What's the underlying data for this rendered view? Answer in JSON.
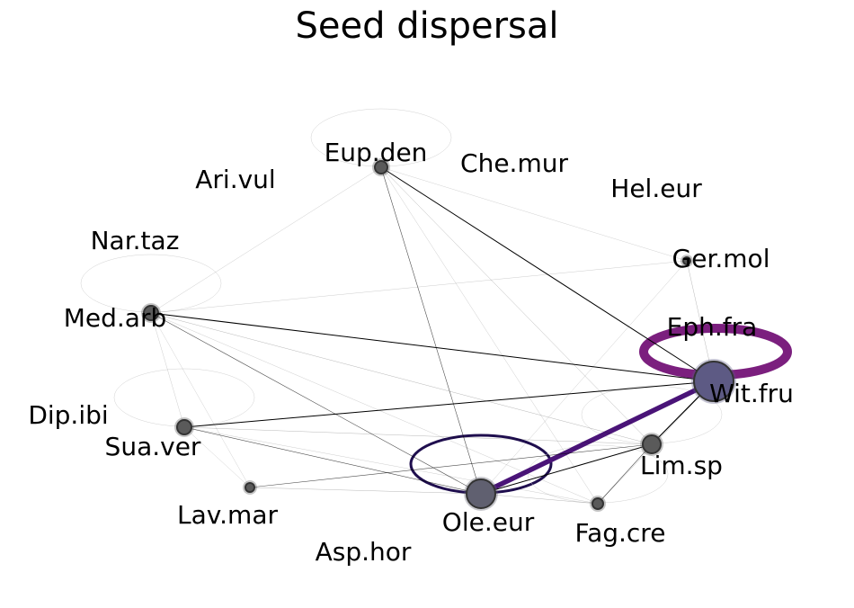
{
  "title": "Seed dispersal",
  "colors": {
    "edge": "#000000",
    "node_fill": "#5a5a5a",
    "node_stroke": "#333333",
    "wit_fill": "#5d5a84",
    "ole_fill": "#606070",
    "loop_eph": "#7b1f7e",
    "loop_ole": "#1f0e4e",
    "edge_wit_ole": "#4a1478",
    "loop_faint": "#cccccc"
  },
  "nodes": [
    {
      "id": "eup",
      "label": "Eup.den"
    },
    {
      "id": "che",
      "label": "Che.mur"
    },
    {
      "id": "ari",
      "label": "Ari.vul"
    },
    {
      "id": "hel",
      "label": "Hel.eur"
    },
    {
      "id": "nar",
      "label": "Nar.taz"
    },
    {
      "id": "ger",
      "label": "Ger.mol"
    },
    {
      "id": "med",
      "label": "Med.arb"
    },
    {
      "id": "eph",
      "label": "Eph.fra"
    },
    {
      "id": "wit",
      "label": "Wit.fru"
    },
    {
      "id": "dip",
      "label": "Dip.ibi"
    },
    {
      "id": "sua",
      "label": "Sua.ver"
    },
    {
      "id": "lim",
      "label": "Lim.sp"
    },
    {
      "id": "lav",
      "label": "Lav.mar"
    },
    {
      "id": "ole",
      "label": "Ole.eur"
    },
    {
      "id": "fag",
      "label": "Fag.cre"
    },
    {
      "id": "asp",
      "label": "Asp.hor"
    }
  ],
  "edges": [
    {
      "source": "wit",
      "target": "ole",
      "weight": 5
    },
    {
      "source": "eup",
      "target": "wit",
      "weight": 1
    },
    {
      "source": "eup",
      "target": "ole",
      "weight": 0.6
    },
    {
      "source": "med",
      "target": "wit",
      "weight": 1
    },
    {
      "source": "med",
      "target": "ole",
      "weight": 0.6
    },
    {
      "source": "sua",
      "target": "wit",
      "weight": 1
    },
    {
      "source": "sua",
      "target": "ole",
      "weight": 0.6
    },
    {
      "source": "lim",
      "target": "wit",
      "weight": 1.2
    },
    {
      "source": "lim",
      "target": "ole",
      "weight": 1
    },
    {
      "source": "lim",
      "target": "fag",
      "weight": 0.6
    },
    {
      "source": "lav",
      "target": "lim",
      "weight": 0.6
    },
    {
      "source": "lav",
      "target": "ole",
      "weight": 0.3
    },
    {
      "source": "ole",
      "target": "fag",
      "weight": 0.3
    },
    {
      "source": "ger",
      "target": "wit",
      "weight": 0.3
    },
    {
      "source": "eup",
      "target": "lim",
      "weight": 0.3
    },
    {
      "source": "eup",
      "target": "med",
      "weight": 0.2
    },
    {
      "source": "eup",
      "target": "fag",
      "weight": 0.2
    },
    {
      "source": "med",
      "target": "ger",
      "weight": 0.2
    },
    {
      "source": "med",
      "target": "sua",
      "weight": 0.2
    },
    {
      "source": "med",
      "target": "lim",
      "weight": 0.3
    },
    {
      "source": "med",
      "target": "fag",
      "weight": 0.2
    },
    {
      "source": "sua",
      "target": "lim",
      "weight": 0.3
    },
    {
      "source": "sua",
      "target": "fag",
      "weight": 0.2
    },
    {
      "source": "fag",
      "target": "wit",
      "weight": 0.3
    },
    {
      "source": "ole",
      "target": "ger",
      "weight": 0.2
    },
    {
      "source": "eup",
      "target": "ger",
      "weight": 0.15
    },
    {
      "source": "med",
      "target": "lav",
      "weight": 0.15
    },
    {
      "source": "sua",
      "target": "lav",
      "weight": 0.15
    }
  ],
  "loops": [
    {
      "node": "eph",
      "weight": 10,
      "color": "loop_eph"
    },
    {
      "node": "ole",
      "weight": 3,
      "color": "loop_ole"
    },
    {
      "node": "eup",
      "weight": 0.2,
      "color": "loop_faint"
    },
    {
      "node": "med",
      "weight": 0.2,
      "color": "loop_faint"
    },
    {
      "node": "sua",
      "weight": 0.2,
      "color": "loop_faint"
    },
    {
      "node": "lim",
      "weight": 0.3,
      "color": "loop_faint"
    },
    {
      "node": "fag",
      "weight": 0.2,
      "color": "loop_faint"
    }
  ]
}
